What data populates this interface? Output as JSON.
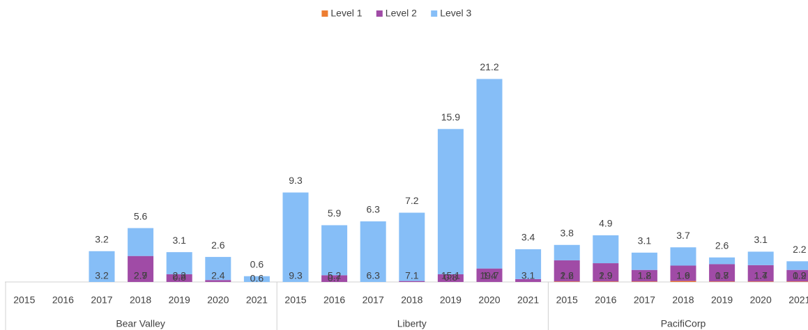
{
  "chart_data": {
    "type": "stacked-bar",
    "groups": [
      {
        "name": "Bear Valley",
        "categories": [
          "2015",
          "2016",
          "2017",
          "2018",
          "2019",
          "2020",
          "2021"
        ]
      },
      {
        "name": "Liberty",
        "categories": [
          "2015",
          "2016",
          "2017",
          "2018",
          "2019",
          "2020",
          "2021"
        ]
      },
      {
        "name": "PacifiCorp",
        "categories": [
          "2015",
          "2016",
          "2017",
          "2018",
          "2019",
          "2020",
          "2021"
        ]
      }
    ],
    "series": [
      {
        "name": "Level 1",
        "color": "#ED7D31",
        "values": [
          0,
          0,
          0,
          0,
          0,
          0,
          0,
          0,
          0,
          0,
          0,
          0,
          0,
          0,
          0.05,
          0.05,
          0.05,
          0.1,
          0.05,
          0.05,
          0.05
        ],
        "value_labels": [
          null,
          null,
          null,
          null,
          null,
          null,
          null,
          null,
          null,
          null,
          null,
          null,
          null,
          null,
          null,
          null,
          null,
          null,
          null,
          null,
          null
        ]
      },
      {
        "name": "Level 2",
        "color": "#A04BA6",
        "values": [
          0,
          0,
          0,
          2.7,
          0.8,
          0.2,
          0,
          0,
          0.7,
          0,
          0.1,
          0.8,
          1.4,
          0.3,
          2.2,
          1.9,
          1.2,
          1.6,
          1.8,
          1.7,
          1.2
        ],
        "value_labels": [
          null,
          null,
          null,
          "2.7",
          "0.8",
          null,
          null,
          null,
          "0.7",
          null,
          null,
          "0.8",
          "1.4",
          null,
          "2.2",
          "1.9",
          "1.2",
          "1.6",
          "1.8",
          "1.7",
          "1.2"
        ]
      },
      {
        "name": "Level 3",
        "color": "#86BEF7",
        "values": [
          0,
          0,
          3.2,
          2.9,
          2.3,
          2.4,
          0.6,
          9.3,
          5.2,
          6.3,
          7.1,
          15.1,
          19.7,
          3.1,
          1.6,
          2.9,
          1.8,
          1.9,
          0.7,
          1.4,
          0.9
        ],
        "value_labels": [
          null,
          null,
          "3.2",
          "2.9",
          "2.3",
          "2.4",
          "0.6",
          "9.3",
          "5.2",
          "6.3",
          "7.1",
          "15.1",
          "19.7",
          "3.1",
          "1.6",
          "2.9",
          "1.8",
          "1.9",
          "0.7",
          "1.4",
          "0.9"
        ]
      }
    ],
    "totals": [
      null,
      null,
      3.2,
      5.6,
      3.1,
      2.6,
      0.6,
      9.3,
      5.9,
      6.3,
      7.2,
      15.9,
      21.2,
      3.4,
      3.8,
      4.9,
      3.1,
      3.7,
      2.6,
      3.1,
      2.2
    ],
    "ylim": [
      0,
      22
    ],
    "legend": "top"
  }
}
